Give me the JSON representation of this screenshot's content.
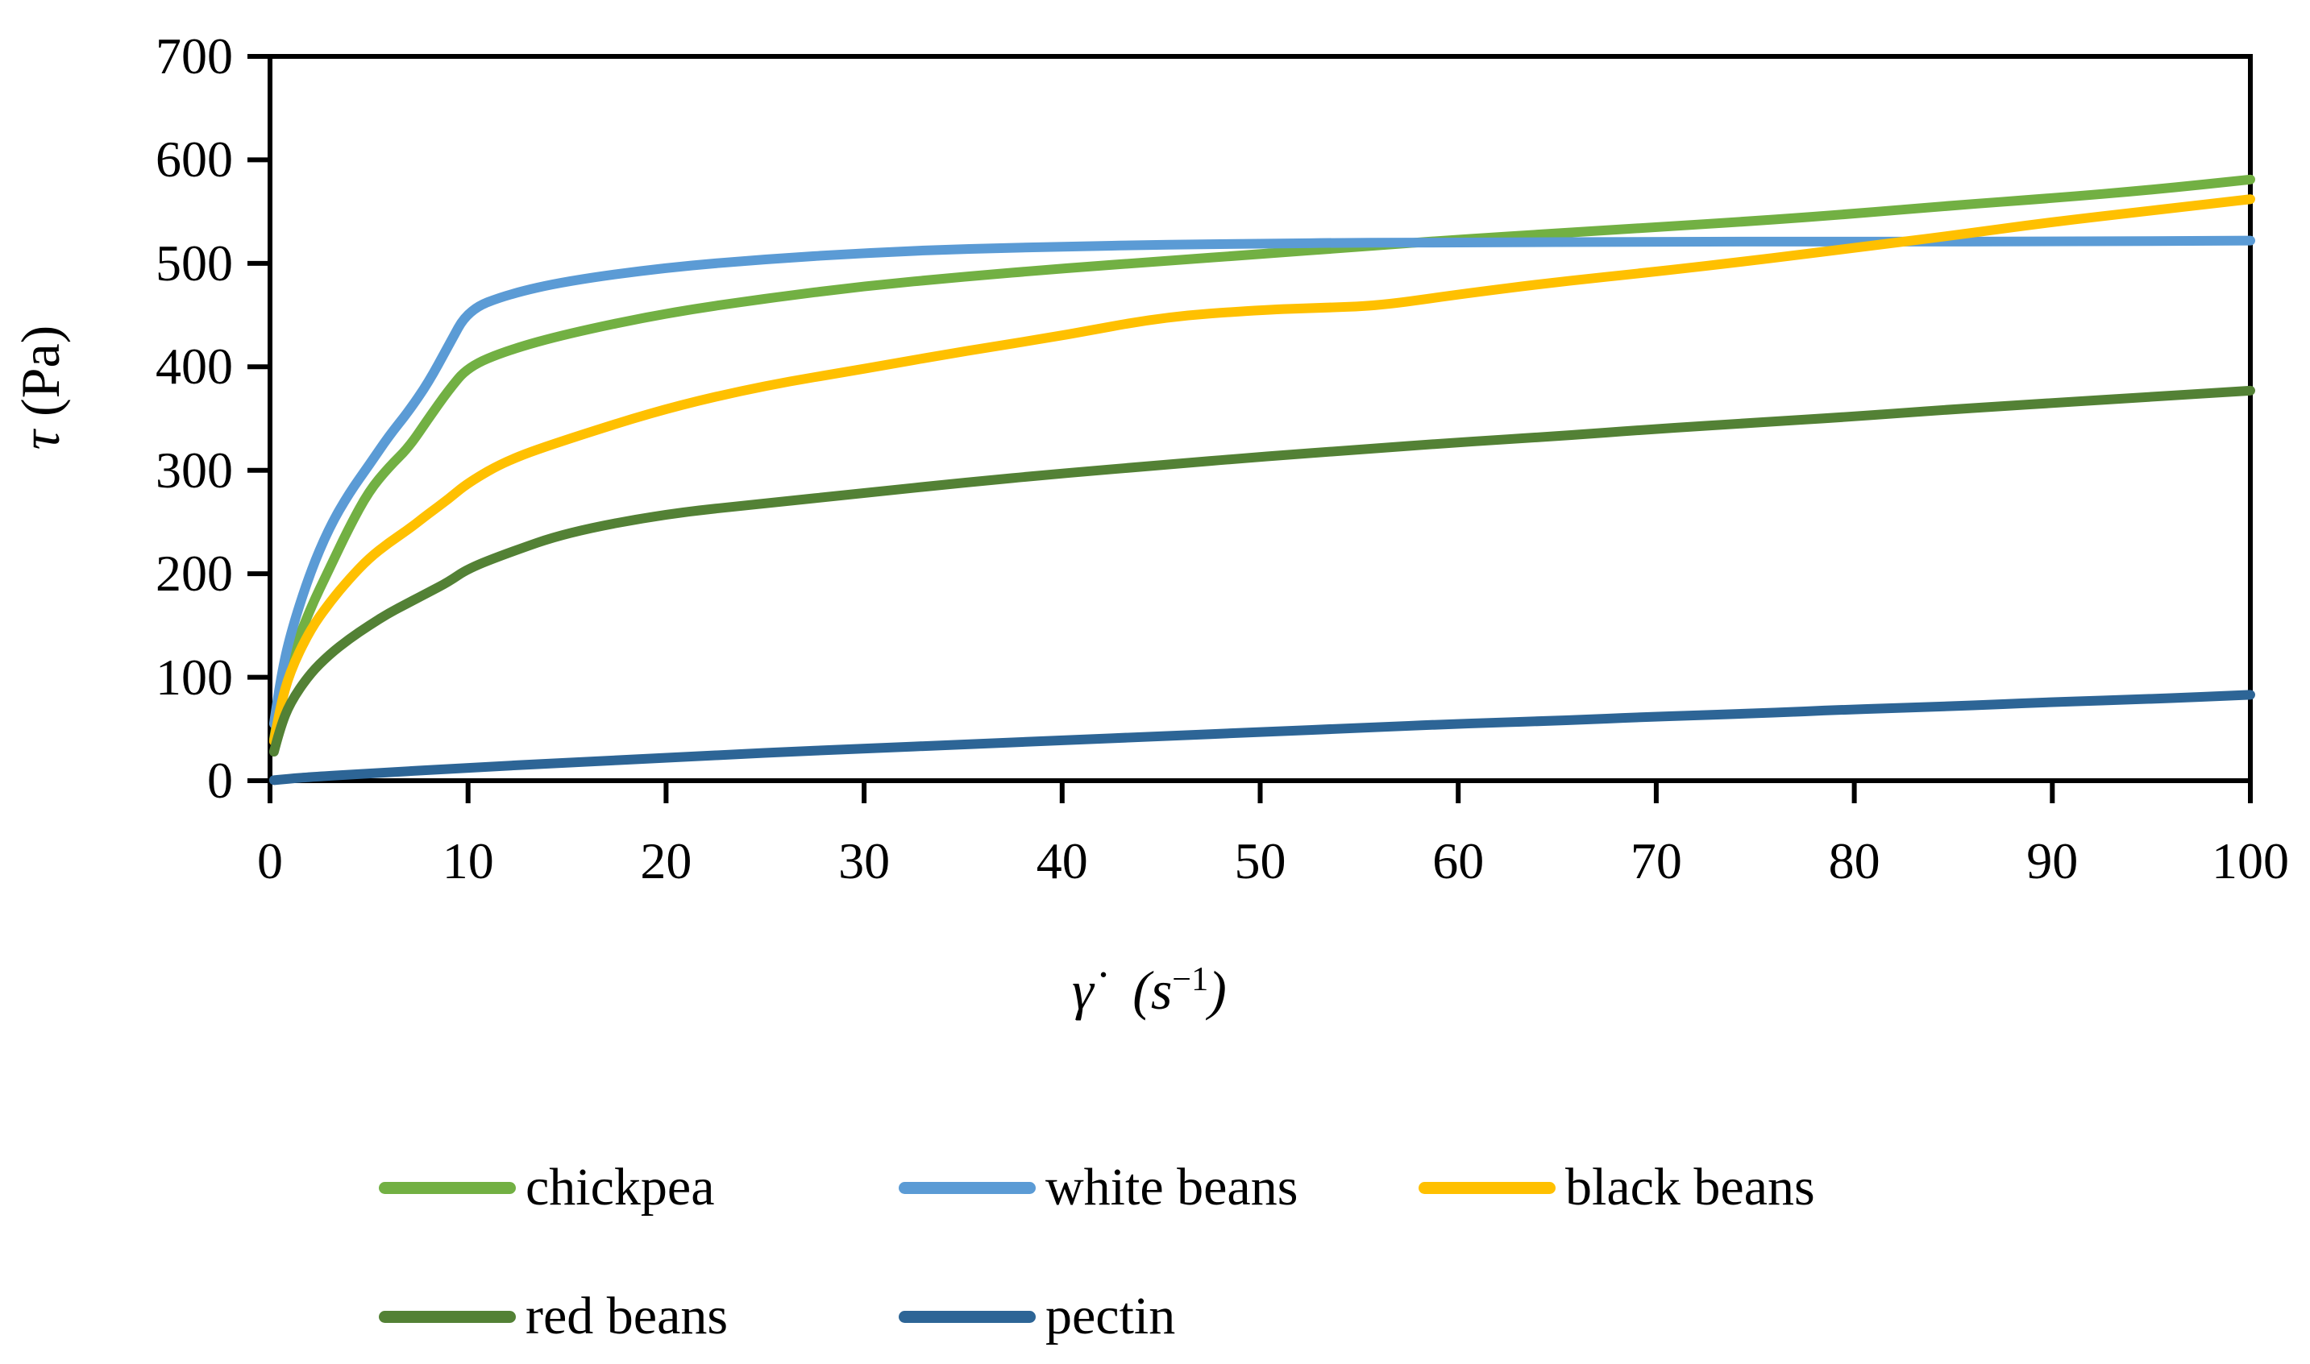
{
  "chart_data": {
    "type": "line",
    "title": "",
    "ylabel": "τ (Pa)",
    "ylabel_parts": {
      "symbol": "τ",
      "unit": "(Pa)"
    },
    "xlabel": "γ̇ (s−1)",
    "xlabel_parts": {
      "symbol": "γ",
      "dot": "˙",
      "unit": "(s",
      "sup": "−1",
      "close": ")"
    },
    "xlim": [
      0,
      100
    ],
    "ylim": [
      0,
      700
    ],
    "x_ticks": [
      0,
      10,
      20,
      30,
      40,
      50,
      60,
      70,
      80,
      90,
      100
    ],
    "y_ticks": [
      0,
      100,
      200,
      300,
      400,
      500,
      600,
      700
    ],
    "grid": false,
    "axis_color": "#000000",
    "legend_position": "bottom",
    "legend_rows": [
      [
        "chickpea",
        "white beans",
        "black beans"
      ],
      [
        "red beans",
        "pectin"
      ]
    ],
    "series": [
      {
        "name": "chickpea",
        "color": "#72B043",
        "points": [
          [
            0.2,
            40
          ],
          [
            0.5,
            75
          ],
          [
            1,
            115
          ],
          [
            2,
            165
          ],
          [
            3,
            205
          ],
          [
            4,
            245
          ],
          [
            5,
            280
          ],
          [
            6,
            303
          ],
          [
            7,
            322
          ],
          [
            8,
            350
          ],
          [
            9,
            377
          ],
          [
            10,
            400
          ],
          [
            12,
            416
          ],
          [
            15,
            432
          ],
          [
            20,
            452
          ],
          [
            25,
            466
          ],
          [
            30,
            478
          ],
          [
            35,
            487
          ],
          [
            40,
            495
          ],
          [
            45,
            502
          ],
          [
            50,
            509
          ],
          [
            55,
            516
          ],
          [
            60,
            523
          ],
          [
            65,
            529
          ],
          [
            70,
            535
          ],
          [
            75,
            541
          ],
          [
            80,
            548
          ],
          [
            85,
            556
          ],
          [
            90,
            563
          ],
          [
            95,
            571
          ],
          [
            100,
            581
          ]
        ]
      },
      {
        "name": "white beans",
        "color": "#5B9BD5",
        "points": [
          [
            0.2,
            55
          ],
          [
            0.5,
            95
          ],
          [
            1,
            140
          ],
          [
            2,
            200
          ],
          [
            3,
            245
          ],
          [
            4,
            278
          ],
          [
            5,
            305
          ],
          [
            6,
            333
          ],
          [
            7,
            357
          ],
          [
            8,
            385
          ],
          [
            9,
            420
          ],
          [
            10,
            455
          ],
          [
            12,
            470
          ],
          [
            15,
            483
          ],
          [
            20,
            496
          ],
          [
            25,
            504
          ],
          [
            30,
            510
          ],
          [
            35,
            514
          ],
          [
            40,
            516
          ],
          [
            45,
            518
          ],
          [
            50,
            519
          ],
          [
            55,
            520
          ],
          [
            60,
            520
          ],
          [
            70,
            521
          ],
          [
            80,
            521
          ],
          [
            90,
            521
          ],
          [
            100,
            522
          ]
        ]
      },
      {
        "name": "black beans",
        "color": "#FFC000",
        "points": [
          [
            0.2,
            38
          ],
          [
            0.5,
            70
          ],
          [
            1,
            105
          ],
          [
            2,
            145
          ],
          [
            3,
            172
          ],
          [
            4,
            195
          ],
          [
            5,
            215
          ],
          [
            6,
            230
          ],
          [
            7,
            243
          ],
          [
            8,
            258
          ],
          [
            9,
            272
          ],
          [
            10,
            288
          ],
          [
            12,
            310
          ],
          [
            15,
            330
          ],
          [
            20,
            360
          ],
          [
            25,
            382
          ],
          [
            30,
            398
          ],
          [
            35,
            415
          ],
          [
            40,
            430
          ],
          [
            45,
            448
          ],
          [
            50,
            455
          ],
          [
            53,
            457
          ],
          [
            56,
            459
          ],
          [
            60,
            470
          ],
          [
            65,
            482
          ],
          [
            70,
            492
          ],
          [
            75,
            503
          ],
          [
            80,
            515
          ],
          [
            85,
            527
          ],
          [
            90,
            540
          ],
          [
            95,
            551
          ],
          [
            100,
            562
          ]
        ]
      },
      {
        "name": "red beans",
        "color": "#538135",
        "points": [
          [
            0.2,
            28
          ],
          [
            0.5,
            50
          ],
          [
            1,
            75
          ],
          [
            2,
            103
          ],
          [
            3,
            122
          ],
          [
            4,
            137
          ],
          [
            5,
            150
          ],
          [
            6,
            162
          ],
          [
            7,
            172
          ],
          [
            8,
            182
          ],
          [
            9,
            192
          ],
          [
            10,
            205
          ],
          [
            12,
            220
          ],
          [
            15,
            240
          ],
          [
            20,
            258
          ],
          [
            25,
            268
          ],
          [
            30,
            278
          ],
          [
            35,
            288
          ],
          [
            40,
            297
          ],
          [
            45,
            305
          ],
          [
            50,
            313
          ],
          [
            55,
            320
          ],
          [
            60,
            327
          ],
          [
            65,
            333
          ],
          [
            70,
            340
          ],
          [
            75,
            346
          ],
          [
            80,
            352
          ],
          [
            85,
            359
          ],
          [
            90,
            365
          ],
          [
            95,
            371
          ],
          [
            100,
            377
          ]
        ]
      },
      {
        "name": "pectin",
        "color": "#2D6596",
        "points": [
          [
            0.2,
            0.5
          ],
          [
            1,
            2
          ],
          [
            2,
            3.5
          ],
          [
            5,
            7
          ],
          [
            10,
            12.5
          ],
          [
            15,
            17.5
          ],
          [
            20,
            22
          ],
          [
            25,
            27
          ],
          [
            30,
            31
          ],
          [
            35,
            35
          ],
          [
            40,
            39
          ],
          [
            45,
            43
          ],
          [
            50,
            47
          ],
          [
            55,
            51
          ],
          [
            60,
            55
          ],
          [
            65,
            58
          ],
          [
            70,
            62
          ],
          [
            75,
            65
          ],
          [
            80,
            69
          ],
          [
            85,
            72
          ],
          [
            90,
            76
          ],
          [
            95,
            79
          ],
          [
            100,
            83
          ]
        ]
      }
    ]
  }
}
